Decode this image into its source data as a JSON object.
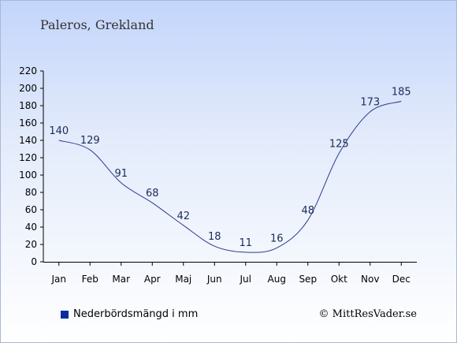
{
  "header": {
    "title": "Paleros, Grekland"
  },
  "chart_data": {
    "type": "line",
    "categories": [
      "Jan",
      "Feb",
      "Mar",
      "Apr",
      "Maj",
      "Jun",
      "Jul",
      "Aug",
      "Sep",
      "Okt",
      "Nov",
      "Dec"
    ],
    "series": [
      {
        "name": "Nederbördsmängd i mm",
        "values": [
          140,
          129,
          91,
          68,
          42,
          18,
          11,
          16,
          48,
          125,
          173,
          185
        ]
      }
    ],
    "yticks": [
      0,
      20,
      40,
      60,
      80,
      100,
      120,
      140,
      160,
      180,
      200,
      220
    ],
    "ylim": [
      0,
      220
    ],
    "grid": false,
    "legend_position": "bottom-left",
    "colors": {
      "line": "#2b3a8f",
      "legend": "#0a2aa0",
      "axis": "#000000"
    }
  },
  "footer": {
    "copyright": "© MittResVader.se"
  }
}
